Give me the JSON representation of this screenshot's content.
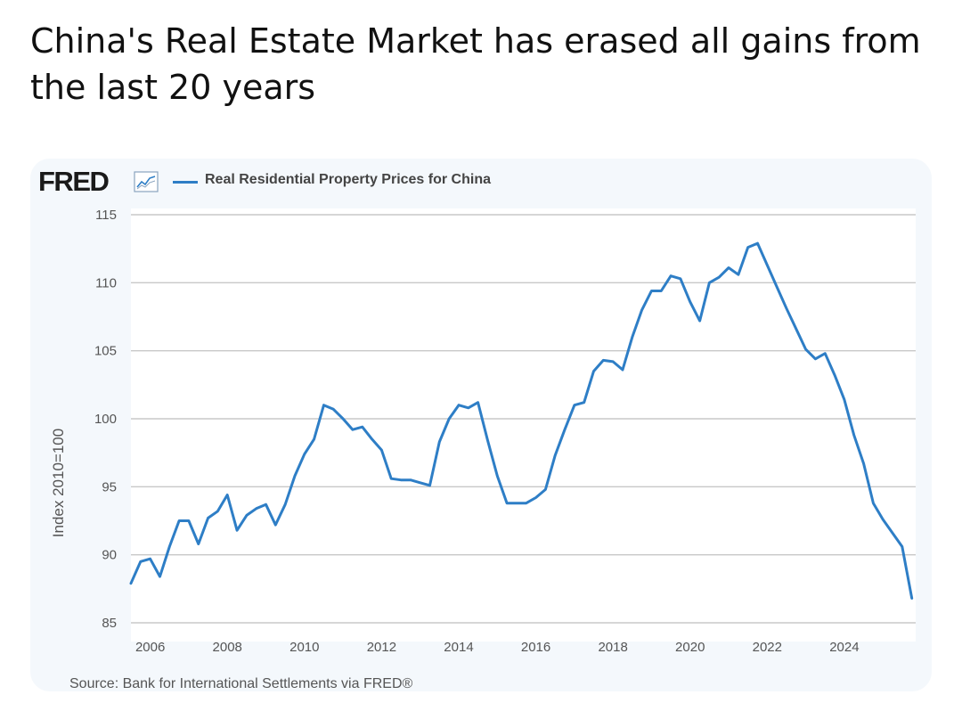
{
  "post": {
    "title": "China's Real Estate Market has erased all gains from the last 20 years"
  },
  "chart_header": {
    "logo": "FRED",
    "logo_icon": "line-chart-icon",
    "series_label": "Real Residential Property Prices for China"
  },
  "source": "Source: Bank for International Settlements via FRED®",
  "colors": {
    "series": "#2e7ec6",
    "grid": "#c8c8c8",
    "card_bg": "#f4f8fc",
    "plot_bg": "#ffffff"
  },
  "chart_data": {
    "type": "line",
    "title": "",
    "xlabel": "",
    "ylabel": "Index 2010=100",
    "xlim": [
      2005.5,
      2025.85
    ],
    "ylim": [
      85,
      115
    ],
    "yticks": [
      "85",
      "90",
      "95",
      "100",
      "105",
      "110",
      "115"
    ],
    "xticks": [
      "2006",
      "2008",
      "2010",
      "2012",
      "2014",
      "2016",
      "2018",
      "2020",
      "2022",
      "2024"
    ],
    "grid": true,
    "legend": "top-left",
    "series": [
      {
        "name": "Real Residential Property Prices for China",
        "x": [
          2005.5,
          2005.75,
          2006.0,
          2006.25,
          2006.5,
          2006.75,
          2007.0,
          2007.25,
          2007.5,
          2007.75,
          2008.0,
          2008.25,
          2008.5,
          2008.75,
          2009.0,
          2009.25,
          2009.5,
          2009.75,
          2010.0,
          2010.25,
          2010.5,
          2010.75,
          2011.0,
          2011.25,
          2011.5,
          2011.75,
          2012.0,
          2012.25,
          2012.5,
          2012.75,
          2013.0,
          2013.25,
          2013.5,
          2013.75,
          2014.0,
          2014.25,
          2014.5,
          2014.75,
          2015.0,
          2015.25,
          2015.5,
          2015.75,
          2016.0,
          2016.25,
          2016.5,
          2016.75,
          2017.0,
          2017.25,
          2017.5,
          2017.75,
          2018.0,
          2018.25,
          2018.5,
          2018.75,
          2019.0,
          2019.25,
          2019.5,
          2019.75,
          2020.0,
          2020.25,
          2020.5,
          2020.75,
          2021.0,
          2021.25,
          2021.5,
          2021.75,
          2022.0,
          2022.25,
          2022.5,
          2022.75,
          2023.0,
          2023.25,
          2023.5,
          2023.75,
          2024.0,
          2024.25,
          2024.5,
          2024.75,
          2025.0,
          2025.25,
          2025.5,
          2025.75
        ],
        "values": [
          87.9,
          89.5,
          89.7,
          88.4,
          90.6,
          92.5,
          92.5,
          90.8,
          92.7,
          93.2,
          94.4,
          91.8,
          92.9,
          93.4,
          93.7,
          92.2,
          93.7,
          95.8,
          97.4,
          98.5,
          101.0,
          100.7,
          100.0,
          99.2,
          99.4,
          98.5,
          97.7,
          95.6,
          95.5,
          95.5,
          95.3,
          95.1,
          98.3,
          100.0,
          101.0,
          100.8,
          101.2,
          98.4,
          95.8,
          93.8,
          93.8,
          93.8,
          94.2,
          94.8,
          97.3,
          99.2,
          101.0,
          101.2,
          103.5,
          104.3,
          104.2,
          103.6,
          106.0,
          108.0,
          109.4,
          109.4,
          110.5,
          110.3,
          108.6,
          107.2,
          110.0,
          110.4,
          111.1,
          110.6,
          112.6,
          112.9,
          111.3,
          109.7,
          108.1,
          106.6,
          105.1,
          104.4,
          104.8,
          103.2,
          101.4,
          98.8,
          96.7,
          93.8,
          92.6,
          91.6,
          90.6,
          86.8
        ]
      }
    ]
  }
}
